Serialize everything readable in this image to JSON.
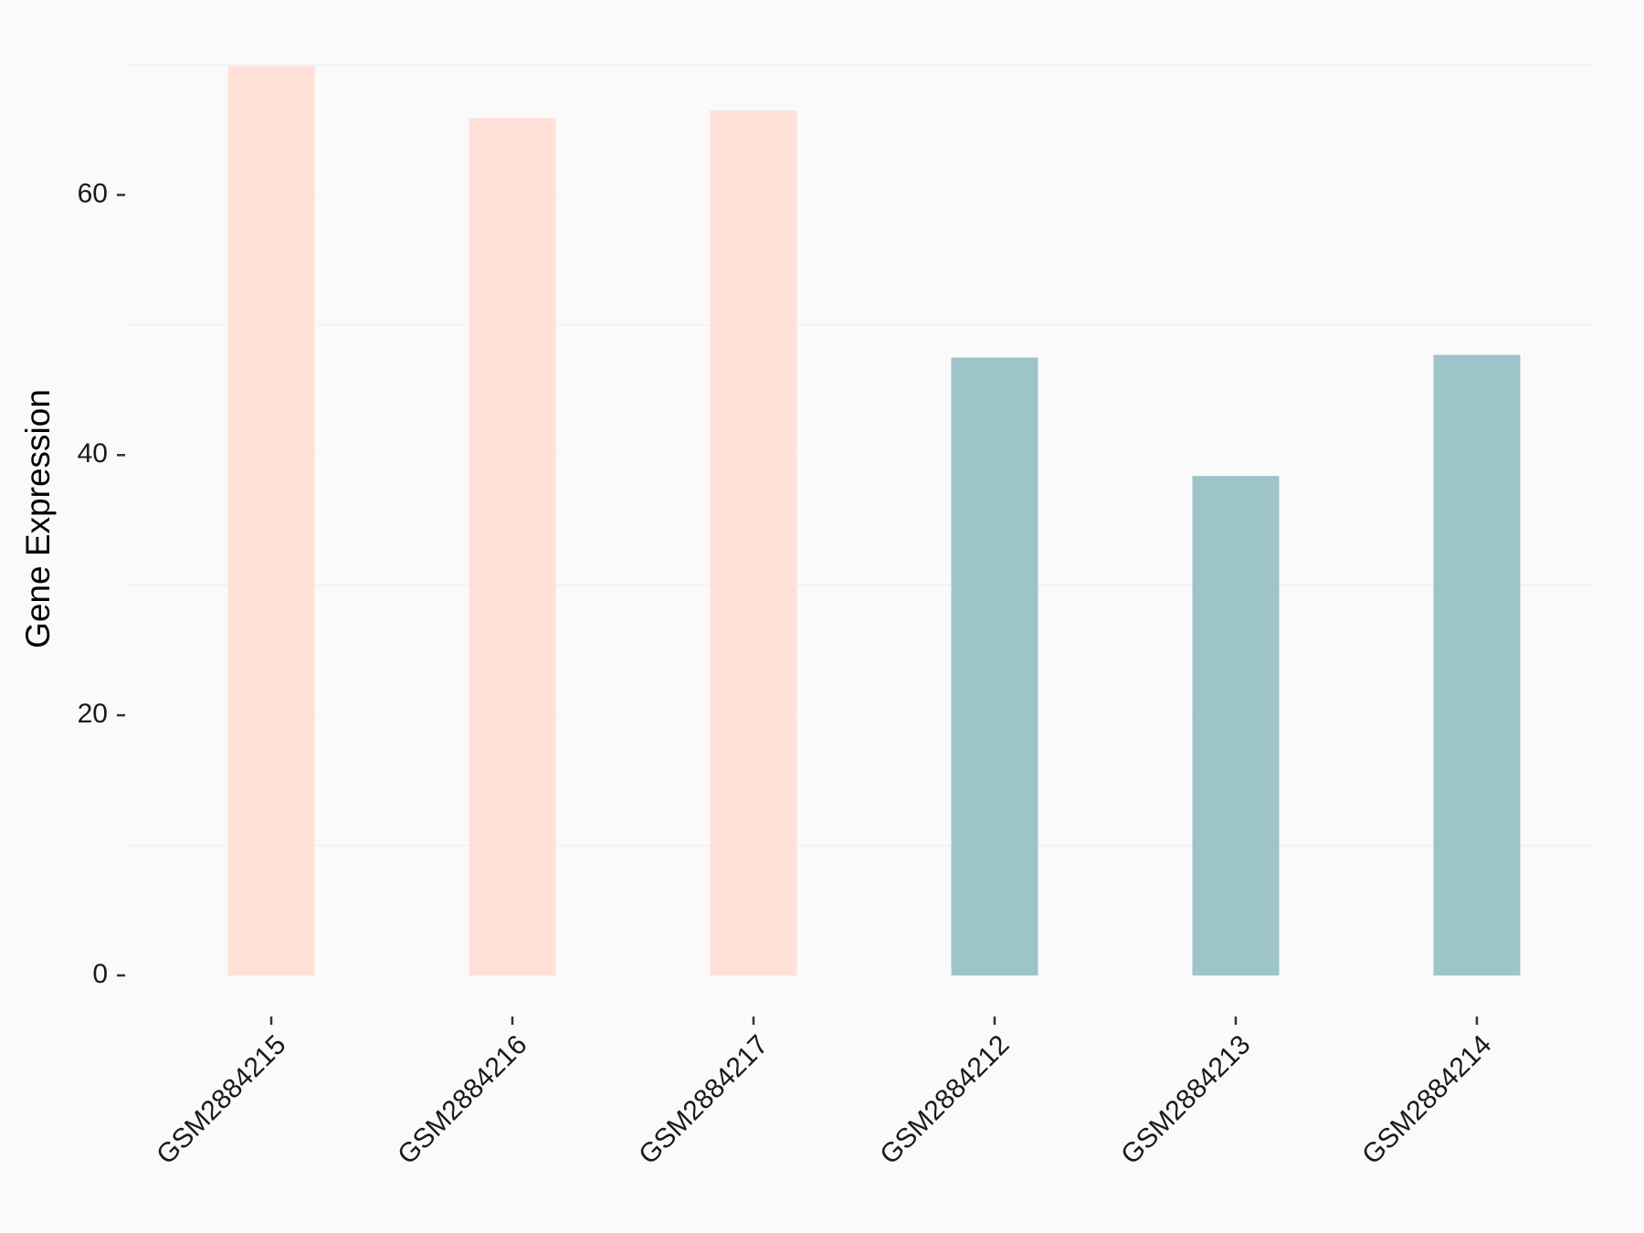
{
  "chart_data": {
    "type": "bar",
    "y_label": "Gene Expression",
    "categories": [
      "GSM2884215",
      "GSM2884216",
      "GSM2884217",
      "GSM2884212",
      "GSM2884213",
      "GSM2884214"
    ],
    "values": [
      69.9,
      65.9,
      66.5,
      47.5,
      38.4,
      47.7
    ],
    "colors": [
      "#ffe1d7",
      "#ffe1d7",
      "#ffe1d7",
      "#9dc4c8",
      "#9dc4c8",
      "#9dc4c8"
    ],
    "ylim": [
      0,
      70
    ],
    "yticks": [
      0,
      20,
      40,
      60
    ],
    "minor_grid": [
      10,
      30,
      50,
      70
    ],
    "grid": true
  }
}
